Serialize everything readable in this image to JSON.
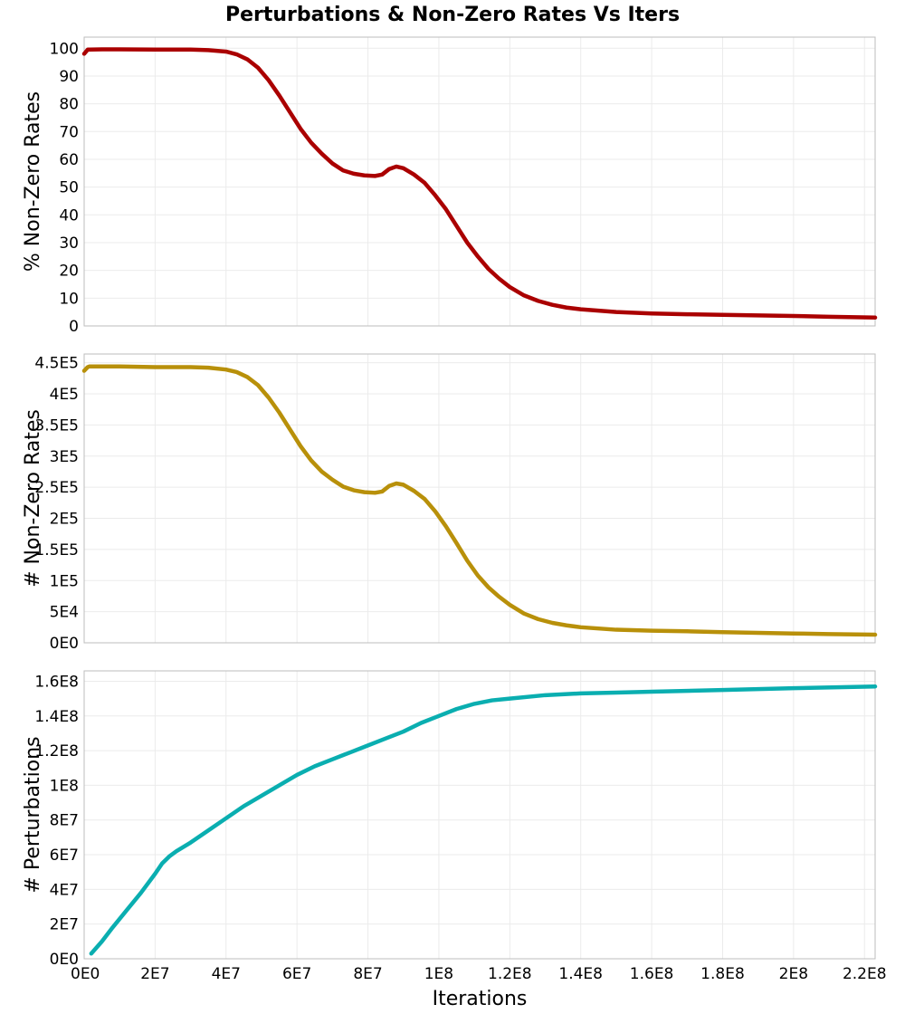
{
  "title": "Perturbations & Non-Zero Rates Vs Iters",
  "chart_data": [
    {
      "type": "line",
      "ylabel": "% Non-Zero Rates",
      "xlim": [
        0,
        223000000
      ],
      "ylim": [
        0,
        104
      ],
      "yticks": [
        0,
        10,
        20,
        30,
        40,
        50,
        60,
        70,
        80,
        90,
        100
      ],
      "ytick_labels": [
        "0",
        "10",
        "20",
        "30",
        "40",
        "50",
        "60",
        "70",
        "80",
        "90",
        "100"
      ],
      "grid": true,
      "color": "#aa0000",
      "x": [
        0,
        1000000,
        1500000,
        5000000,
        10000000,
        20000000,
        30000000,
        35000000,
        40000000,
        43000000,
        46000000,
        49000000,
        52000000,
        55000000,
        58000000,
        61000000,
        64000000,
        67000000,
        70000000,
        73000000,
        76000000,
        79000000,
        82000000,
        84000000,
        86000000,
        88000000,
        90000000,
        93000000,
        96000000,
        99000000,
        102000000,
        105000000,
        108000000,
        111000000,
        114000000,
        117000000,
        120000000,
        124000000,
        128000000,
        132000000,
        136000000,
        140000000,
        145000000,
        150000000,
        160000000,
        170000000,
        180000000,
        190000000,
        200000000,
        210000000,
        223000000
      ],
      "y": [
        98,
        99.5,
        99.5,
        99.6,
        99.6,
        99.5,
        99.5,
        99.3,
        98.8,
        97.8,
        96,
        93,
        88.5,
        83,
        77,
        71,
        66,
        62,
        58.5,
        56,
        54.8,
        54.2,
        54,
        54.5,
        56.5,
        57.4,
        56.8,
        54.5,
        51.5,
        47,
        42,
        36,
        30,
        25,
        20.5,
        17,
        14,
        11,
        9,
        7.6,
        6.6,
        6,
        5.5,
        5,
        4.5,
        4.2,
        4,
        3.8,
        3.6,
        3.3,
        3
      ]
    },
    {
      "type": "line",
      "ylabel": "# Non-Zero Rates",
      "xlim": [
        0,
        223000000
      ],
      "ylim": [
        0,
        464000
      ],
      "yticks": [
        0,
        50000,
        100000,
        150000,
        200000,
        250000,
        300000,
        350000,
        400000,
        450000
      ],
      "ytick_labels": [
        "0E0",
        "5E4",
        "1E5",
        "1.5E5",
        "2E5",
        "2.5E5",
        "3E5",
        "3.5E5",
        "4E5",
        "4.5E5"
      ],
      "grid": true,
      "color": "#b8900a",
      "x": [
        0,
        1000000,
        1500000,
        5000000,
        10000000,
        20000000,
        30000000,
        35000000,
        40000000,
        43000000,
        46000000,
        49000000,
        52000000,
        55000000,
        58000000,
        61000000,
        64000000,
        67000000,
        70000000,
        73000000,
        76000000,
        79000000,
        82000000,
        84000000,
        86000000,
        88000000,
        90000000,
        93000000,
        96000000,
        99000000,
        102000000,
        105000000,
        108000000,
        111000000,
        114000000,
        117000000,
        120000000,
        124000000,
        128000000,
        132000000,
        136000000,
        140000000,
        145000000,
        150000000,
        160000000,
        170000000,
        180000000,
        190000000,
        200000000,
        210000000,
        223000000
      ],
      "y": [
        437000,
        443000,
        444000,
        444000,
        444000,
        443000,
        443000,
        442000,
        439000,
        435000,
        427000,
        414000,
        394000,
        370000,
        343000,
        316000,
        293000,
        275000,
        262000,
        251000,
        245000,
        242000,
        241000,
        243000,
        252000,
        256000,
        254000,
        244000,
        231000,
        211000,
        187000,
        160000,
        132000,
        108000,
        89000,
        74000,
        61000,
        47000,
        38000,
        32000,
        28000,
        25000,
        23000,
        21000,
        19500,
        18500,
        17000,
        16000,
        15000,
        14000,
        13000
      ]
    },
    {
      "type": "line",
      "xlabel": "Iterations",
      "ylabel": "# Perturbations",
      "xlim": [
        0,
        223000000
      ],
      "ylim": [
        0,
        166000000
      ],
      "yticks": [
        0,
        20000000,
        40000000,
        60000000,
        80000000,
        100000000,
        120000000,
        140000000,
        160000000
      ],
      "ytick_labels": [
        "0E0",
        "2E7",
        "4E7",
        "6E7",
        "8E7",
        "1E8",
        "1.2E8",
        "1.4E8",
        "1.6E8"
      ],
      "xticks": [
        0,
        20000000,
        40000000,
        60000000,
        80000000,
        100000000,
        120000000,
        140000000,
        160000000,
        180000000,
        200000000,
        220000000
      ],
      "xtick_labels": [
        "0E0",
        "2E7",
        "4E7",
        "6E7",
        "8E7",
        "1E8",
        "1.2E8",
        "1.4E8",
        "1.6E8",
        "1.8E8",
        "2E8",
        "2.2E8"
      ],
      "grid": true,
      "color": "#0aaeb0",
      "x": [
        2000000,
        5000000,
        8000000,
        12000000,
        16000000,
        20000000,
        22000000,
        24000000,
        26000000,
        30000000,
        35000000,
        40000000,
        45000000,
        50000000,
        55000000,
        60000000,
        65000000,
        70000000,
        75000000,
        80000000,
        85000000,
        90000000,
        95000000,
        100000000,
        105000000,
        110000000,
        115000000,
        120000000,
        130000000,
        140000000,
        150000000,
        160000000,
        180000000,
        200000000,
        223000000
      ],
      "y": [
        3000000,
        10000000,
        18000000,
        28000000,
        38000000,
        49000000,
        55000000,
        59000000,
        62000000,
        67000000,
        74000000,
        81000000,
        88000000,
        94000000,
        100000000,
        106000000,
        111000000,
        115000000,
        119000000,
        123000000,
        127000000,
        131000000,
        136000000,
        140000000,
        144000000,
        147000000,
        149000000,
        150000000,
        152000000,
        153000000,
        153500000,
        154000000,
        155000000,
        156000000,
        157000000
      ]
    }
  ]
}
